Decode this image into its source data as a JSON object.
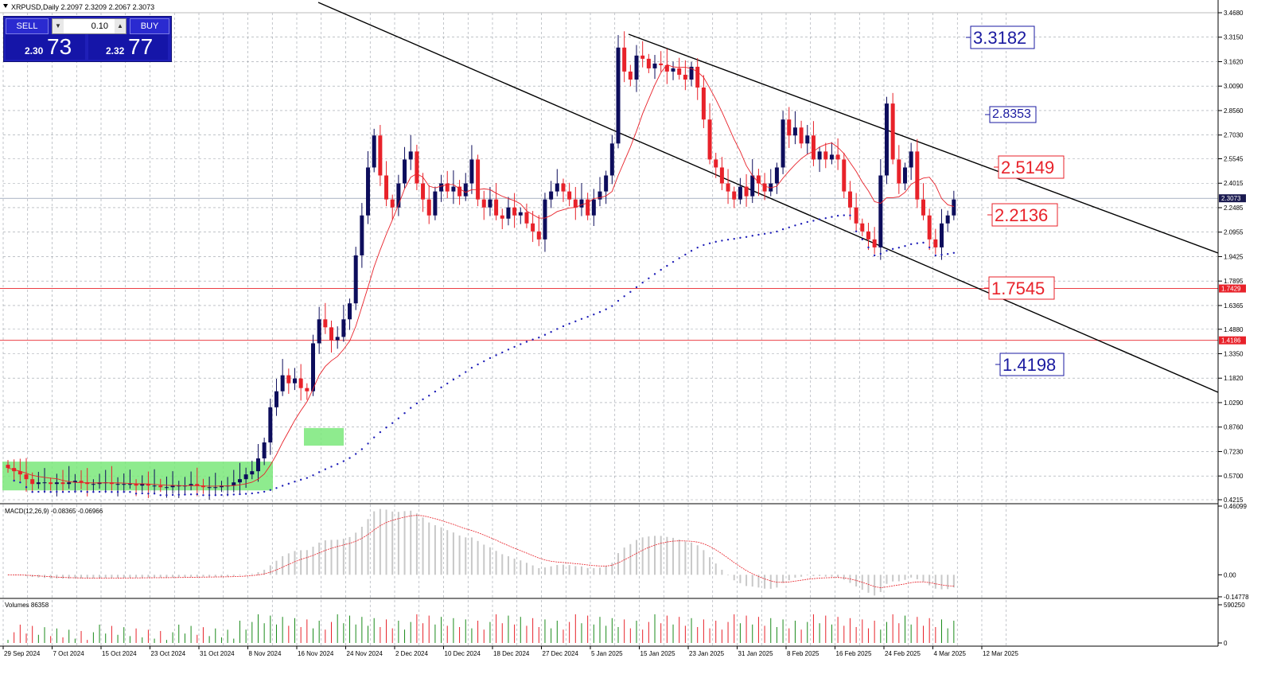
{
  "header": {
    "symbol_line": "XRPUSD,Daily  2.2097 2.3209 2.2067 2.3073"
  },
  "trade_panel": {
    "sell_label": "SELL",
    "buy_label": "BUY",
    "lot": "0.10",
    "sell_price_small": "2.30",
    "sell_price_big": "73",
    "buy_price_small": "2.32",
    "buy_price_big": "77"
  },
  "colors": {
    "bull": "#0d0d5c",
    "bear": "#e8222a",
    "ma": "#e8222a",
    "sar": "#1f1fb8",
    "grid": "#9aa0a8",
    "zone": "#7ae87a",
    "label_blue": "#1a1aa0",
    "label_red": "#e8222a"
  },
  "chart_data": [
    {
      "type": "candlestick",
      "title": "XRPUSD,Daily",
      "ylim": [
        0.4215,
        3.468
      ],
      "y_scale": "linear",
      "grid": true,
      "y_ticks": [
        "3.4680",
        "3.3150",
        "3.1620",
        "3.0090",
        "2.8560",
        "2.7030",
        "2.5545",
        "2.4015",
        "2.2485",
        "2.0955",
        "1.9425",
        "1.7895",
        "1.6365",
        "1.4880",
        "1.3350",
        "1.1820",
        "1.0290",
        "0.8760",
        "0.7230",
        "0.5700",
        "0.4215"
      ],
      "x_ticks": [
        "29 Sep 2024",
        "7 Oct 2024",
        "15 Oct 2024",
        "23 Oct 2024",
        "31 Oct 2024",
        "8 Nov 2024",
        "16 Nov 2024",
        "24 Nov 2024",
        "2 Dec 2024",
        "10 Dec 2024",
        "18 Dec 2024",
        "27 Dec 2024",
        "5 Jan 2025",
        "15 Jan 2025",
        "23 Jan 2025",
        "31 Jan 2025",
        "8 Feb 2025",
        "16 Feb 2025",
        "24 Feb 2025",
        "4 Mar 2025",
        "12 Mar 2025"
      ],
      "current_price": "2.3073",
      "horizontal_lines": [
        "1.7429",
        "1.4186"
      ],
      "level_labels": [
        {
          "text": "3.3182",
          "color": "blue"
        },
        {
          "text": "2.8353",
          "color": "blue"
        },
        {
          "text": "2.5149",
          "color": "red"
        },
        {
          "text": "2.2136",
          "color": "red"
        },
        {
          "text": "1.7545",
          "color": "red"
        },
        {
          "text": "1.4198",
          "color": "blue"
        }
      ],
      "candles_close": [
        0.62,
        0.6,
        0.58,
        0.55,
        0.52,
        0.53,
        0.53,
        0.52,
        0.53,
        0.52,
        0.53,
        0.54,
        0.53,
        0.52,
        0.52,
        0.53,
        0.53,
        0.52,
        0.52,
        0.52,
        0.52,
        0.51,
        0.52,
        0.51,
        0.51,
        0.5,
        0.5,
        0.51,
        0.51,
        0.51,
        0.52,
        0.51,
        0.5,
        0.5,
        0.5,
        0.51,
        0.51,
        0.53,
        0.55,
        0.58,
        0.6,
        0.68,
        0.78,
        1.0,
        1.1,
        1.2,
        1.15,
        1.18,
        1.12,
        1.1,
        1.4,
        1.55,
        1.5,
        1.42,
        1.44,
        1.55,
        1.65,
        1.95,
        2.2,
        2.5,
        2.7,
        2.45,
        2.3,
        2.25,
        2.4,
        2.55,
        2.6,
        2.4,
        2.3,
        2.2,
        2.35,
        2.4,
        2.35,
        2.38,
        2.32,
        2.4,
        2.55,
        2.3,
        2.25,
        2.3,
        2.2,
        2.18,
        2.25,
        2.2,
        2.22,
        2.15,
        2.1,
        2.05,
        2.3,
        2.35,
        2.4,
        2.35,
        2.3,
        2.25,
        2.3,
        2.2,
        2.3,
        2.35,
        2.45,
        2.65,
        3.25,
        3.1,
        3.05,
        3.2,
        3.18,
        3.12,
        3.15,
        3.14,
        3.1,
        3.12,
        3.08,
        3.05,
        3.13,
        3.0,
        2.8,
        2.55,
        2.5,
        2.4,
        2.35,
        2.3,
        2.38,
        2.32,
        2.45,
        2.4,
        2.35,
        2.4,
        2.5,
        2.8,
        2.7,
        2.75,
        2.65,
        2.7,
        2.55,
        2.6,
        2.55,
        2.58,
        2.55,
        2.35,
        2.25,
        2.15,
        2.1,
        2.05,
        2.0,
        2.45,
        2.9,
        2.55,
        2.4,
        2.5,
        2.6,
        2.3,
        2.2,
        2.05,
        2.0,
        2.15,
        2.2,
        2.3
      ],
      "macd": {
        "label": "MACD(12,26,9) -0.08365 -0.06966",
        "ylim": [
          -0.14778,
          0.46099
        ],
        "y_ticks": [
          "0.46099",
          "0.00",
          "-0.14778"
        ]
      },
      "volumes": {
        "label": "Volumes 86358",
        "ylim": [
          0,
          590250
        ],
        "y_ticks": [
          "590250",
          "0"
        ]
      }
    }
  ]
}
